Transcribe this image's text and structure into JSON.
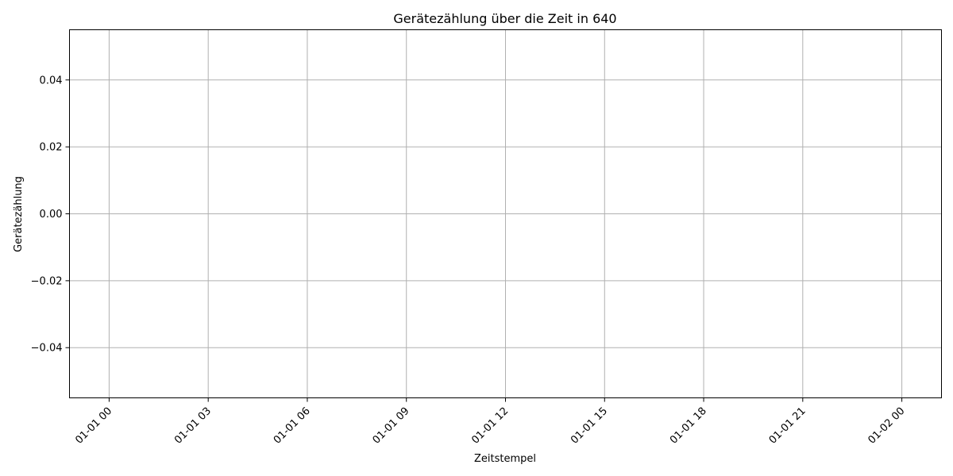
{
  "chart_data": {
    "type": "line",
    "title": "Gerätezählung über die Zeit in 640",
    "xlabel": "Zeitstempel",
    "ylabel": "Gerätezählung",
    "x_tick_labels": [
      "01-01 00",
      "01-01 03",
      "01-01 06",
      "01-01 09",
      "01-01 12",
      "01-01 15",
      "01-01 18",
      "01-01 21",
      "01-02 00"
    ],
    "y_tick_labels": [
      "0.04",
      "0.02",
      "0.00",
      "−0.02",
      "−0.04"
    ],
    "y_tick_values": [
      0.04,
      0.02,
      0.0,
      -0.02,
      -0.04
    ],
    "ylim": [
      -0.055,
      0.055
    ],
    "x_range_hours": [
      -1.2,
      25.2
    ],
    "x_tick_hours": [
      0,
      3,
      6,
      9,
      12,
      15,
      18,
      21,
      24
    ],
    "grid": true,
    "series": []
  }
}
